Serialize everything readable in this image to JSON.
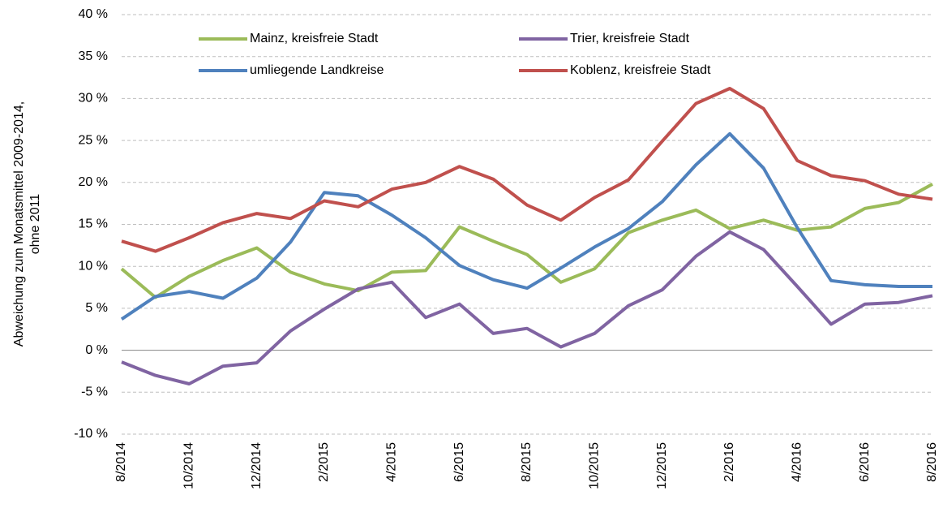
{
  "chart_data": {
    "type": "line",
    "y_label": [
      "Abweichung zum Monatsmittel 2009-2014,",
      "ohne 2011"
    ],
    "x": [
      "8/2014",
      null,
      "10/2014",
      null,
      "12/2014",
      null,
      "2/2015",
      null,
      "4/2015",
      null,
      "6/2015",
      null,
      "8/2015",
      null,
      "10/2015",
      null,
      "12/2015",
      null,
      "2/2016",
      null,
      "4/2016",
      null,
      "6/2016",
      null,
      "8/2016"
    ],
    "ylim": [
      -10,
      40
    ],
    "yticks": [
      {
        "value": -10,
        "label": "-10 %"
      },
      {
        "value": -5,
        "label": "-5 %"
      },
      {
        "value": 0,
        "label": "0 %"
      },
      {
        "value": 5,
        "label": "5 %"
      },
      {
        "value": 10,
        "label": "10 %"
      },
      {
        "value": 15,
        "label": "15 %"
      },
      {
        "value": 20,
        "label": "20 %"
      },
      {
        "value": 25,
        "label": "25 %"
      },
      {
        "value": 30,
        "label": "30 %"
      },
      {
        "value": 35,
        "label": "35 %"
      },
      {
        "value": 40,
        "label": "40 %"
      }
    ],
    "grid": true,
    "legend": "top",
    "series": [
      {
        "name": "Mainz, kreisfreie Stadt",
        "color": "#9bbb59",
        "values": [
          9.7,
          6.3,
          8.8,
          10.7,
          12.2,
          9.3,
          7.9,
          7.1,
          9.3,
          9.5,
          14.7,
          13.0,
          11.4,
          8.1,
          9.7,
          14.0,
          15.5,
          16.7,
          14.5,
          15.5,
          14.3,
          14.7,
          16.9,
          17.6,
          19.8
        ]
      },
      {
        "name": "Trier, kreisfreie Stadt",
        "color": "#8064a2",
        "values": [
          -1.4,
          -3.0,
          -4.0,
          -1.9,
          -1.5,
          2.3,
          4.9,
          7.3,
          8.1,
          3.9,
          5.5,
          2.0,
          2.6,
          0.4,
          2.0,
          5.3,
          7.2,
          11.2,
          14.1,
          12.0,
          7.6,
          3.1,
          5.5,
          5.7,
          6.5
        ]
      },
      {
        "name": "umliegende Landkreise",
        "color": "#4f81bd",
        "values": [
          3.7,
          6.4,
          7.0,
          6.2,
          8.6,
          12.9,
          18.8,
          18.4,
          16.1,
          13.4,
          10.1,
          8.4,
          7.4,
          9.8,
          12.3,
          14.5,
          17.7,
          22.1,
          25.8,
          21.7,
          14.6,
          8.3,
          7.8,
          7.6,
          7.6
        ]
      },
      {
        "name": "Koblenz, kreisfreie Stadt",
        "color": "#c0504d",
        "values": [
          13.0,
          11.8,
          13.4,
          15.2,
          16.3,
          15.7,
          17.8,
          17.1,
          19.2,
          20.0,
          21.9,
          20.4,
          17.3,
          15.5,
          18.2,
          20.3,
          24.9,
          29.4,
          31.2,
          28.8,
          22.6,
          20.8,
          20.2,
          18.6,
          18.0
        ]
      }
    ]
  }
}
